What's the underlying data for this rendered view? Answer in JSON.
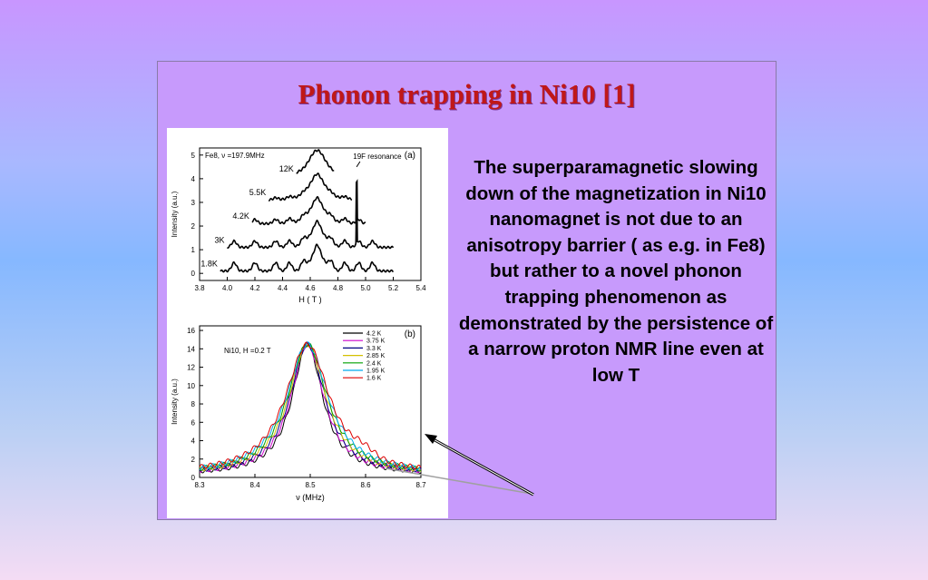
{
  "slide": {
    "title": "Phonon trapping in Ni10 [1]",
    "description": "The superparamagnetic slowing down of the magnetization in Ni10 nanomagnet is not due to an anisotropy barrier ( as e.g. in Fe8) but rather to a novel phonon trapping phenomenon as demonstrated by the persistence of a narrow proton NMR line even at low T"
  },
  "colors": {
    "title": "#c01818",
    "panel_bg": "#c79afc"
  },
  "chart_data": [
    {
      "type": "line",
      "panel_label": "(a)",
      "annotation": "Fe8, ν =197.9MHz",
      "resonance_label": "19F resonance",
      "xlabel": "H ( T )",
      "ylabel": "Intensity (a.u.)",
      "xlim": [
        3.8,
        5.4
      ],
      "ylim": [
        -0.3,
        5.3
      ],
      "xticks": [
        "3.8",
        "4.0",
        "4.2",
        "4.4",
        "4.6",
        "4.8",
        "5.0",
        "5.2",
        "5.4"
      ],
      "yticks": [
        "0",
        "1",
        "2",
        "3",
        "4",
        "5"
      ],
      "series": [
        {
          "name": "12K",
          "offset": 4,
          "x_range": [
            4.5,
            4.77
          ]
        },
        {
          "name": "5.5K",
          "offset": 3,
          "x_range": [
            4.3,
            4.9
          ]
        },
        {
          "name": "4.2K",
          "offset": 2,
          "x_range": [
            4.18,
            5.0
          ]
        },
        {
          "name": "3K",
          "offset": 1,
          "x_range": [
            4.0,
            5.2
          ]
        },
        {
          "name": "1.8K",
          "offset": 0,
          "x_range": [
            3.95,
            5.2
          ]
        }
      ]
    },
    {
      "type": "line",
      "panel_label": "(b)",
      "annotation": "Ni10, H =0.2 T",
      "xlabel": "ν (MHz)",
      "ylabel": "Intensity (a.u.)",
      "xlim": [
        8.3,
        8.7
      ],
      "ylim": [
        0,
        16.5
      ],
      "xticks": [
        "8.3",
        "8.4",
        "8.5",
        "8.6",
        "8.7"
      ],
      "yticks": [
        "0",
        "2",
        "4",
        "6",
        "8",
        "10",
        "12",
        "14",
        "16"
      ],
      "center": 8.495,
      "peak": 14.2,
      "series": [
        {
          "name": "4.2 K",
          "color": "#000000"
        },
        {
          "name": "3.75 K",
          "color": "#cc00cc"
        },
        {
          "name": "3.3 K",
          "color": "#000080"
        },
        {
          "name": "2.85 K",
          "color": "#d4c000"
        },
        {
          "name": "2.4 K",
          "color": "#00a000"
        },
        {
          "name": "1.95 K",
          "color": "#00aaee"
        },
        {
          "name": "1.6 K",
          "color": "#dd0000"
        }
      ]
    }
  ]
}
